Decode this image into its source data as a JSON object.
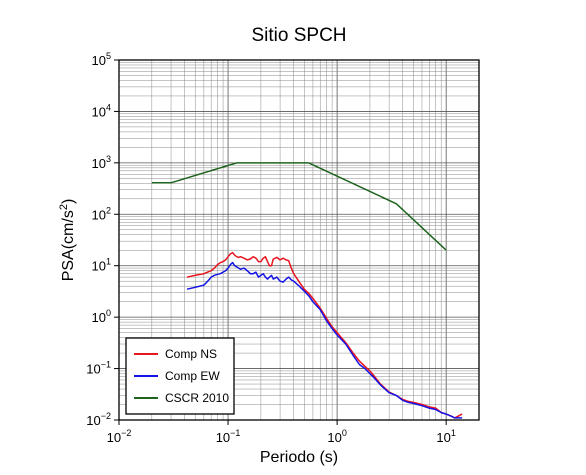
{
  "chart_data": {
    "type": "line",
    "title": "Sitio SPCH",
    "xlabel": "Periodo (s)",
    "ylabel_base": "PSA(cm/s",
    "ylabel_sup": "2",
    "ylabel_close": ")",
    "x_scale": "log",
    "y_scale": "log",
    "xlim": [
      0.01,
      20
    ],
    "ylim": [
      0.01,
      100000
    ],
    "x_ticks": [
      {
        "value": 0.01,
        "base": "10",
        "exp": "−2"
      },
      {
        "value": 0.1,
        "base": "10",
        "exp": "−1"
      },
      {
        "value": 1,
        "base": "10",
        "exp": "0"
      },
      {
        "value": 10,
        "base": "10",
        "exp": "1"
      }
    ],
    "y_ticks": [
      {
        "value": 0.01,
        "base": "10",
        "exp": "−2"
      },
      {
        "value": 0.1,
        "base": "10",
        "exp": "−1"
      },
      {
        "value": 1,
        "base": "10",
        "exp": "0"
      },
      {
        "value": 10,
        "base": "10",
        "exp": "1"
      },
      {
        "value": 100,
        "base": "10",
        "exp": "2"
      },
      {
        "value": 1000,
        "base": "10",
        "exp": "3"
      },
      {
        "value": 10000,
        "base": "10",
        "exp": "4"
      },
      {
        "value": 100000,
        "base": "10",
        "exp": "5"
      }
    ],
    "grid": true,
    "legend_position": "bottom-left",
    "series": [
      {
        "name": "Comp NS",
        "color": "#e8141e",
        "x": [
          0.042,
          0.05,
          0.06,
          0.065,
          0.07,
          0.075,
          0.08,
          0.085,
          0.09,
          0.095,
          0.1,
          0.105,
          0.11,
          0.115,
          0.12,
          0.125,
          0.13,
          0.14,
          0.15,
          0.16,
          0.17,
          0.18,
          0.19,
          0.2,
          0.21,
          0.22,
          0.23,
          0.24,
          0.25,
          0.26,
          0.28,
          0.3,
          0.32,
          0.34,
          0.36,
          0.38,
          0.4,
          0.45,
          0.5,
          0.55,
          0.6,
          0.7,
          0.8,
          0.9,
          1.0,
          1.2,
          1.4,
          1.6,
          1.8,
          2.0,
          2.2,
          2.5,
          3.0,
          3.5,
          4.0,
          4.5,
          5.0,
          6.0,
          7.0,
          8.0,
          9.0,
          10.0,
          11.0,
          12.0,
          13.0,
          14.0
        ],
        "y": [
          6,
          6.5,
          7,
          7.5,
          8,
          9,
          10.5,
          11.5,
          12,
          13,
          15,
          17,
          18,
          16,
          15,
          14.5,
          15,
          14,
          13,
          13.5,
          15,
          14,
          12,
          12,
          14,
          15,
          12,
          10,
          10,
          13.5,
          14.5,
          13,
          14,
          13,
          12.5,
          9,
          7,
          4.8,
          3.5,
          2.9,
          2.3,
          1.5,
          0.95,
          0.65,
          0.5,
          0.32,
          0.2,
          0.14,
          0.11,
          0.09,
          0.07,
          0.05,
          0.035,
          0.03,
          0.025,
          0.023,
          0.022,
          0.02,
          0.018,
          0.017,
          0.014,
          0.013,
          0.012,
          0.011,
          0.012,
          0.013
        ]
      },
      {
        "name": "Comp EW",
        "color": "#1414e8",
        "x": [
          0.042,
          0.05,
          0.06,
          0.065,
          0.07,
          0.075,
          0.08,
          0.085,
          0.09,
          0.095,
          0.1,
          0.105,
          0.11,
          0.115,
          0.12,
          0.125,
          0.13,
          0.14,
          0.15,
          0.16,
          0.17,
          0.18,
          0.19,
          0.2,
          0.21,
          0.22,
          0.23,
          0.24,
          0.25,
          0.26,
          0.28,
          0.3,
          0.32,
          0.34,
          0.36,
          0.38,
          0.4,
          0.45,
          0.5,
          0.55,
          0.6,
          0.7,
          0.8,
          0.9,
          1.0,
          1.2,
          1.4,
          1.6,
          1.8,
          2.0,
          2.2,
          2.5,
          3.0,
          3.5,
          4.0,
          4.5,
          5.0,
          6.0,
          7.0,
          8.0,
          9.0,
          10.0,
          11.0,
          12.0,
          13.0,
          14.0
        ],
        "y": [
          3.5,
          3.8,
          4.2,
          5,
          6,
          6.5,
          6.8,
          7,
          7.5,
          8,
          9,
          10.5,
          11.5,
          10,
          9.5,
          9,
          8.5,
          9,
          8,
          7,
          7,
          7.5,
          6,
          6.5,
          7,
          6,
          5.5,
          6,
          6.5,
          5.5,
          6,
          5,
          4.8,
          5.5,
          6,
          5.3,
          5,
          4,
          3.2,
          2.6,
          2,
          1.4,
          0.85,
          0.6,
          0.45,
          0.3,
          0.18,
          0.12,
          0.1,
          0.08,
          0.065,
          0.048,
          0.034,
          0.03,
          0.024,
          0.022,
          0.021,
          0.019,
          0.017,
          0.016,
          0.014,
          0.013,
          0.012,
          0.011,
          0.011,
          0.011
        ]
      },
      {
        "name": "CSCR 2010",
        "color": "#1e641e",
        "x": [
          0.02,
          0.03,
          0.12,
          0.55,
          3.5,
          10
        ],
        "y": [
          410,
          410,
          1000,
          1000,
          160,
          20
        ]
      }
    ]
  }
}
